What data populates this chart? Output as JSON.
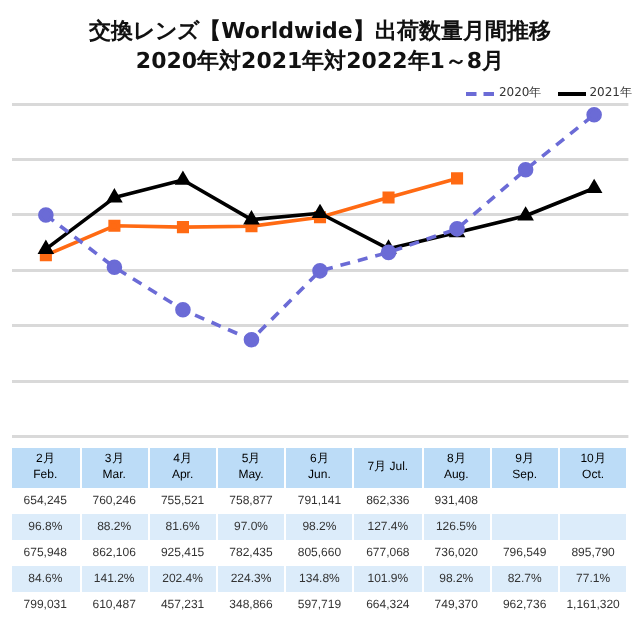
{
  "chart_data": {
    "type": "line",
    "title": "交換レンズ【Worldwide】出荷数量月間推移",
    "subtitle": "2020年対2021年対2022年1～8月",
    "categories": [
      "2月 Feb.",
      "3月 Mar.",
      "4月 Apr.",
      "5月 May.",
      "6月 Jun.",
      "7月 Jul.",
      "8月 Aug.",
      "9月 Sep.",
      "10月 Oct."
    ],
    "series": [
      {
        "name": "2020年",
        "color": "#6b6bd6",
        "marker": "circle",
        "line_style": "dashed",
        "values": [
          799031,
          610487,
          457231,
          348866,
          597719,
          664324,
          749370,
          962736,
          1161320
        ],
        "value_labels": [
          "799,031",
          "610,487",
          "457,231",
          "348,866",
          "597,719",
          "664,324",
          "749,370",
          "962,736",
          "1,161,320"
        ]
      },
      {
        "name": "2021年",
        "color": "#000000",
        "marker": "triangle",
        "line_style": "solid",
        "values": [
          675948,
          862106,
          925415,
          782435,
          805660,
          677068,
          736020,
          796549,
          895790
        ],
        "value_labels": [
          "675,948",
          "862,106",
          "925,415",
          "782,435",
          "805,660",
          "677,068",
          "736,020",
          "796,549",
          "895,790"
        ]
      },
      {
        "color": "#ff6a13",
        "marker": "square",
        "line_style": "solid",
        "values": [
          654245,
          760246,
          755521,
          758877,
          791141,
          862336,
          931408,
          null,
          null
        ],
        "value_labels": [
          "654,245",
          "760,246",
          "755,521",
          "758,877",
          "791,141",
          "862,336",
          "931,408",
          null,
          null
        ]
      }
    ],
    "tick_labels": false,
    "grid": "y",
    "legend": "top right",
    "annotations": [
      "96.8%",
      "88.2%",
      "81.6%",
      "97.0%",
      "98.2%",
      "127.4%",
      "126.5%",
      "84.6%",
      "141.2%",
      "202.4%",
      "224.3%",
      "134.8%",
      "101.9%",
      "98.2%",
      "82.7%",
      "77.1%"
    ]
  }
}
